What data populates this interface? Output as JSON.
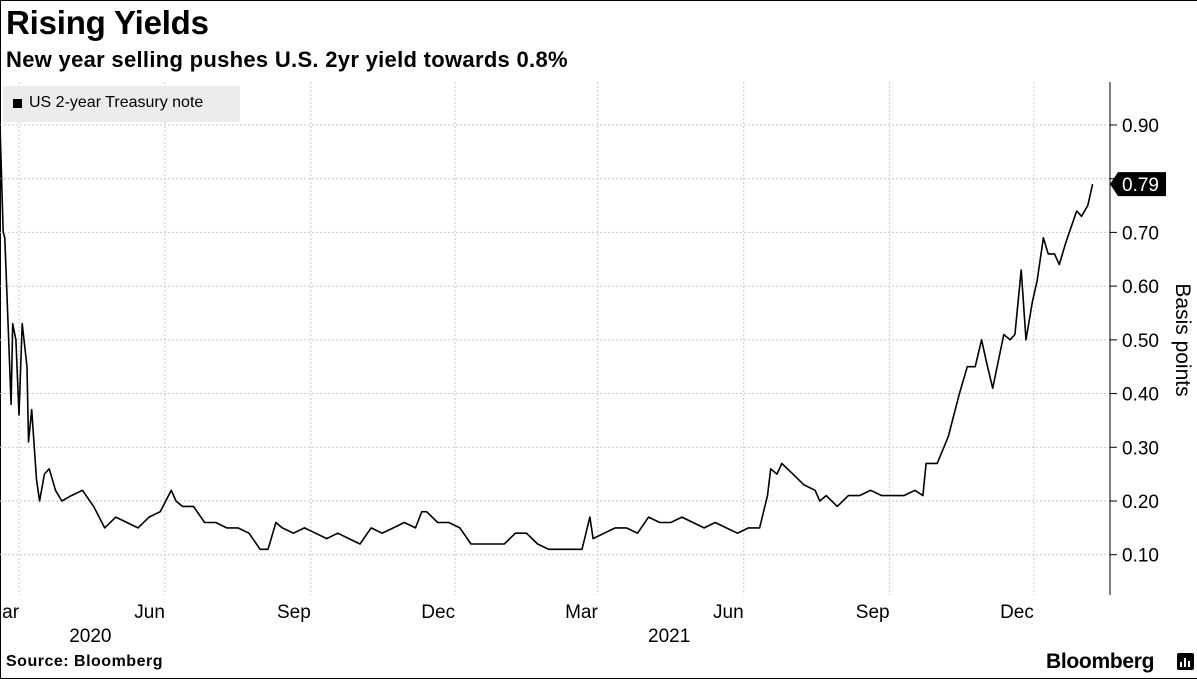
{
  "header": {
    "title": "Rising Yields",
    "subtitle": "New year selling pushes U.S. 2yr yield towards 0.8%"
  },
  "legend": {
    "label": "US 2-year Treasury note",
    "swatch_color": "#000000"
  },
  "footer": {
    "source": "Source: Bloomberg",
    "brand": "Bloomberg"
  },
  "chart_data": {
    "type": "line",
    "ylabel": "Basis points",
    "ylim": [
      0.025,
      0.98
    ],
    "yticks": [
      0.1,
      0.2,
      0.3,
      0.4,
      0.5,
      0.6,
      0.7,
      0.8,
      0.9
    ],
    "ytick_labels": [
      "0.10",
      "0.20",
      "0.30",
      "0.40",
      "0.50",
      "0.60",
      "0.70",
      "",
      "0.90"
    ],
    "last_value_label": "0.79",
    "xlim": [
      "2020-02-18",
      "2022-01-18"
    ],
    "x_month_labels": [
      {
        "date": "2020-03-01",
        "label": "Mar"
      },
      {
        "date": "2020-06-01",
        "label": "Jun"
      },
      {
        "date": "2020-09-01",
        "label": "Sep"
      },
      {
        "date": "2020-12-01",
        "label": "Dec"
      },
      {
        "date": "2021-03-01",
        "label": "Mar"
      },
      {
        "date": "2021-06-01",
        "label": "Jun"
      },
      {
        "date": "2021-09-01",
        "label": "Sep"
      },
      {
        "date": "2021-12-01",
        "label": "Dec"
      }
    ],
    "x_year_labels": [
      {
        "date": "2020-04-15",
        "label": "2020"
      },
      {
        "date": "2021-04-15",
        "label": "2021"
      }
    ],
    "grid": true,
    "line_color": "#000000",
    "series": [
      {
        "name": "US 2-year Treasury note",
        "points": [
          [
            "2020-02-18",
            0.9
          ],
          [
            "2020-02-20",
            0.7
          ],
          [
            "2020-02-21",
            0.69
          ],
          [
            "2020-02-25",
            0.38
          ],
          [
            "2020-02-26",
            0.53
          ],
          [
            "2020-02-28",
            0.5
          ],
          [
            "2020-03-01",
            0.36
          ],
          [
            "2020-03-03",
            0.53
          ],
          [
            "2020-03-06",
            0.45
          ],
          [
            "2020-03-07",
            0.31
          ],
          [
            "2020-03-09",
            0.37
          ],
          [
            "2020-03-12",
            0.24
          ],
          [
            "2020-03-14",
            0.2
          ],
          [
            "2020-03-17",
            0.25
          ],
          [
            "2020-03-20",
            0.26
          ],
          [
            "2020-03-24",
            0.22
          ],
          [
            "2020-03-28",
            0.2
          ],
          [
            "2020-04-03",
            0.21
          ],
          [
            "2020-04-10",
            0.22
          ],
          [
            "2020-04-17",
            0.19
          ],
          [
            "2020-04-24",
            0.15
          ],
          [
            "2020-05-01",
            0.17
          ],
          [
            "2020-05-08",
            0.16
          ],
          [
            "2020-05-15",
            0.15
          ],
          [
            "2020-05-22",
            0.17
          ],
          [
            "2020-05-29",
            0.18
          ],
          [
            "2020-06-05",
            0.22
          ],
          [
            "2020-06-08",
            0.2
          ],
          [
            "2020-06-12",
            0.19
          ],
          [
            "2020-06-19",
            0.19
          ],
          [
            "2020-06-26",
            0.16
          ],
          [
            "2020-07-03",
            0.16
          ],
          [
            "2020-07-10",
            0.15
          ],
          [
            "2020-07-17",
            0.15
          ],
          [
            "2020-07-24",
            0.14
          ],
          [
            "2020-07-31",
            0.11
          ],
          [
            "2020-08-05",
            0.11
          ],
          [
            "2020-08-07",
            0.13
          ],
          [
            "2020-08-10",
            0.16
          ],
          [
            "2020-08-14",
            0.15
          ],
          [
            "2020-08-21",
            0.14
          ],
          [
            "2020-08-28",
            0.15
          ],
          [
            "2020-09-04",
            0.14
          ],
          [
            "2020-09-11",
            0.13
          ],
          [
            "2020-09-18",
            0.14
          ],
          [
            "2020-09-25",
            0.13
          ],
          [
            "2020-10-02",
            0.12
          ],
          [
            "2020-10-09",
            0.15
          ],
          [
            "2020-10-16",
            0.14
          ],
          [
            "2020-10-23",
            0.15
          ],
          [
            "2020-10-30",
            0.16
          ],
          [
            "2020-11-06",
            0.15
          ],
          [
            "2020-11-10",
            0.18
          ],
          [
            "2020-11-13",
            0.18
          ],
          [
            "2020-11-20",
            0.16
          ],
          [
            "2020-11-27",
            0.16
          ],
          [
            "2020-12-04",
            0.15
          ],
          [
            "2020-12-11",
            0.12
          ],
          [
            "2020-12-18",
            0.12
          ],
          [
            "2020-12-25",
            0.12
          ],
          [
            "2021-01-01",
            0.12
          ],
          [
            "2021-01-08",
            0.14
          ],
          [
            "2021-01-15",
            0.14
          ],
          [
            "2021-01-22",
            0.12
          ],
          [
            "2021-01-29",
            0.11
          ],
          [
            "2021-02-05",
            0.11
          ],
          [
            "2021-02-12",
            0.11
          ],
          [
            "2021-02-19",
            0.11
          ],
          [
            "2021-02-24",
            0.17
          ],
          [
            "2021-02-26",
            0.13
          ],
          [
            "2021-03-05",
            0.14
          ],
          [
            "2021-03-12",
            0.15
          ],
          [
            "2021-03-19",
            0.15
          ],
          [
            "2021-03-26",
            0.14
          ],
          [
            "2021-04-02",
            0.17
          ],
          [
            "2021-04-09",
            0.16
          ],
          [
            "2021-04-16",
            0.16
          ],
          [
            "2021-04-23",
            0.17
          ],
          [
            "2021-04-30",
            0.16
          ],
          [
            "2021-05-07",
            0.15
          ],
          [
            "2021-05-14",
            0.16
          ],
          [
            "2021-05-21",
            0.15
          ],
          [
            "2021-05-28",
            0.14
          ],
          [
            "2021-06-04",
            0.15
          ],
          [
            "2021-06-11",
            0.15
          ],
          [
            "2021-06-16",
            0.21
          ],
          [
            "2021-06-18",
            0.26
          ],
          [
            "2021-06-22",
            0.25
          ],
          [
            "2021-06-25",
            0.27
          ],
          [
            "2021-07-02",
            0.25
          ],
          [
            "2021-07-09",
            0.23
          ],
          [
            "2021-07-16",
            0.22
          ],
          [
            "2021-07-19",
            0.2
          ],
          [
            "2021-07-23",
            0.21
          ],
          [
            "2021-07-30",
            0.19
          ],
          [
            "2021-08-06",
            0.21
          ],
          [
            "2021-08-13",
            0.21
          ],
          [
            "2021-08-20",
            0.22
          ],
          [
            "2021-08-27",
            0.21
          ],
          [
            "2021-09-03",
            0.21
          ],
          [
            "2021-09-10",
            0.21
          ],
          [
            "2021-09-17",
            0.22
          ],
          [
            "2021-09-22",
            0.21
          ],
          [
            "2021-09-24",
            0.27
          ],
          [
            "2021-10-01",
            0.27
          ],
          [
            "2021-10-08",
            0.32
          ],
          [
            "2021-10-15",
            0.4
          ],
          [
            "2021-10-20",
            0.45
          ],
          [
            "2021-10-25",
            0.45
          ],
          [
            "2021-10-29",
            0.5
          ],
          [
            "2021-11-01",
            0.46
          ],
          [
            "2021-11-05",
            0.41
          ],
          [
            "2021-11-12",
            0.51
          ],
          [
            "2021-11-16",
            0.5
          ],
          [
            "2021-11-19",
            0.51
          ],
          [
            "2021-11-23",
            0.63
          ],
          [
            "2021-11-26",
            0.5
          ],
          [
            "2021-11-30",
            0.57
          ],
          [
            "2021-12-03",
            0.61
          ],
          [
            "2021-12-07",
            0.69
          ],
          [
            "2021-12-10",
            0.66
          ],
          [
            "2021-12-14",
            0.66
          ],
          [
            "2021-12-17",
            0.64
          ],
          [
            "2021-12-21",
            0.68
          ],
          [
            "2021-12-28",
            0.74
          ],
          [
            "2021-12-31",
            0.73
          ],
          [
            "2022-01-04",
            0.75
          ],
          [
            "2022-01-07",
            0.79
          ]
        ]
      }
    ]
  }
}
